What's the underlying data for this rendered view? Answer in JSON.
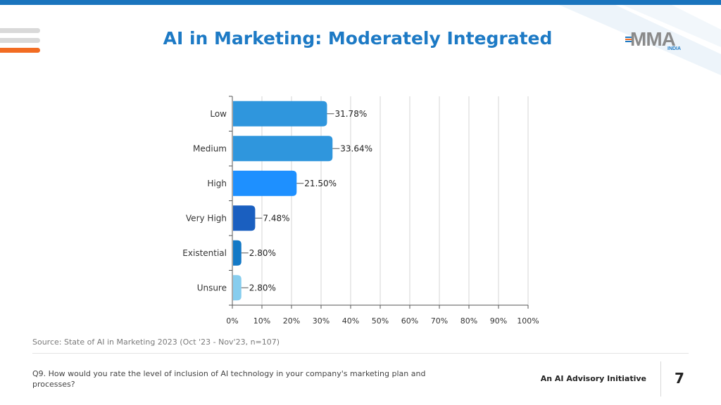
{
  "header": {
    "title": "AI in Marketing: Moderately Integrated",
    "logo_text": "MMA",
    "logo_subtext": "INDIA"
  },
  "chart_data": {
    "type": "bar",
    "orientation": "horizontal",
    "title": "AI in Marketing: Moderately Integrated",
    "categories": [
      "Low",
      "Medium",
      "High",
      "Very High",
      "Existential",
      "Unsure"
    ],
    "values": [
      31.78,
      33.64,
      21.5,
      7.48,
      2.8,
      2.8
    ],
    "value_labels": [
      "31.78%",
      "33.64%",
      "21.50%",
      "7.48%",
      "2.80%",
      "2.80%"
    ],
    "bar_colors": [
      "#2f96dd",
      "#2f96dd",
      "#1e90ff",
      "#1a5fc0",
      "#1379c6",
      "#87cdee"
    ],
    "xlim": [
      0,
      100
    ],
    "x_ticks": [
      0,
      10,
      20,
      30,
      40,
      50,
      60,
      70,
      80,
      90,
      100
    ],
    "x_tick_labels": [
      "0%",
      "10%",
      "20%",
      "30%",
      "40%",
      "50%",
      "60%",
      "70%",
      "80%",
      "90%",
      "100%"
    ],
    "xlabel": "",
    "ylabel": "",
    "grid": true,
    "legend": "none"
  },
  "footer": {
    "source": "Source: State of AI in Marketing 2023 (Oct '23 - Nov'23, n=107)",
    "question": "Q9. How would you rate the level of inclusion of AI technology in your company's marketing plan and processes?",
    "initiative": "An AI Advisory Initiative",
    "page_number": "7"
  },
  "colors": {
    "brand_blue": "#1d7ac5",
    "brand_orange": "#f26c22",
    "top_bar": "#1a74bd"
  }
}
